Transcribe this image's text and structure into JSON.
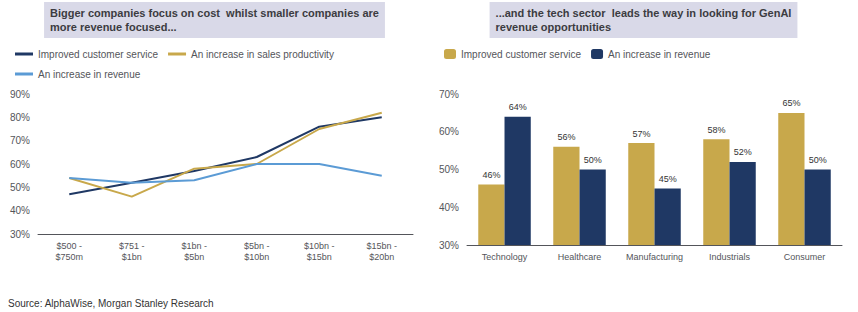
{
  "chart_data": [
    {
      "type": "line",
      "title": "Bigger companies focus on cost  whilst smaller companies are\nmore revenue focused...",
      "title_color": "#d9d9e8",
      "categories": [
        "$500 -\n$750m",
        "$751 -\n$1bn",
        "$1bn -\n$5bn",
        "$5bn -\n$10bn",
        "$10bn -\n$15bn",
        "$15bn -\n$20bn"
      ],
      "series": [
        {
          "name": "Improved customer service",
          "color": "#1f3864",
          "values": [
            47,
            52,
            57,
            63,
            76,
            80
          ]
        },
        {
          "name": "An increase in sales productivity",
          "color": "#c8a84b",
          "values": [
            54,
            46,
            58,
            60,
            75,
            82
          ]
        },
        {
          "name": "An increase in revenue",
          "color": "#5b9bd5",
          "values": [
            54,
            52,
            53,
            60,
            60,
            55
          ]
        }
      ],
      "ylim": [
        30,
        90
      ],
      "yticks": [
        {
          "value": 30,
          "label": "30%"
        },
        {
          "value": 40,
          "label": "40%"
        },
        {
          "value": 50,
          "label": "50%"
        },
        {
          "value": 60,
          "label": "60%"
        },
        {
          "value": 70,
          "label": "70%"
        },
        {
          "value": 80,
          "label": "80%"
        },
        {
          "value": 90,
          "label": "90%"
        }
      ],
      "grid": false,
      "legend": "top-left",
      "annotations": [
        "Source: AlphaWise, Morgan Stanley Research"
      ]
    },
    {
      "type": "bar",
      "title": "...and the tech sector  leads the way in looking for GenAI\nrevenue opportunities",
      "title_color": "#d9d9e8",
      "categories": [
        "Technology",
        "Healthcare",
        "Manufacturing",
        "Industrials",
        "Consumer"
      ],
      "series": [
        {
          "name": "Improved customer service",
          "color": "#c8a84b",
          "values": [
            46,
            56,
            57,
            58,
            65
          ],
          "value_labels": [
            "46%",
            "56%",
            "57%",
            "58%",
            "65%"
          ]
        },
        {
          "name": "An increase in revenue",
          "color": "#1f3864",
          "values": [
            64,
            50,
            45,
            52,
            50
          ],
          "value_labels": [
            "64%",
            "50%",
            "45%",
            "52%",
            "50%"
          ]
        }
      ],
      "ylim": [
        30,
        70
      ],
      "yticks": [
        {
          "value": 30,
          "label": "30%"
        },
        {
          "value": 40,
          "label": "40%"
        },
        {
          "value": 50,
          "label": "50%"
        },
        {
          "value": 60,
          "label": "60%"
        },
        {
          "value": 70,
          "label": "70%"
        }
      ],
      "grid": false,
      "legend": "top-left",
      "data_labels": true
    }
  ]
}
